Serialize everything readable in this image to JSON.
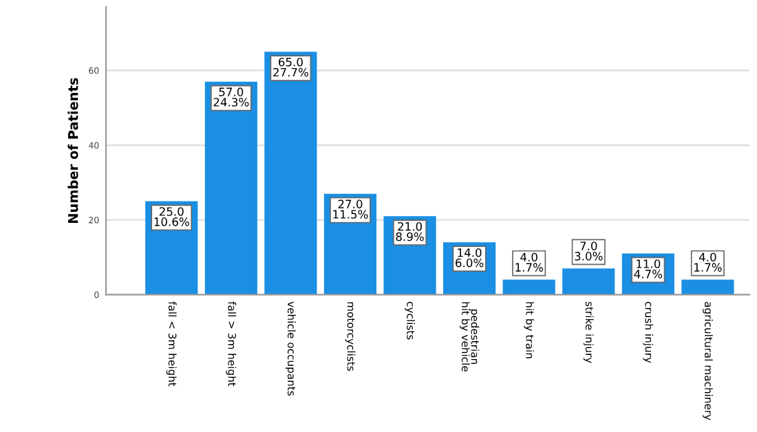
{
  "chart_data": {
    "type": "bar",
    "ylabel": "Number of Patients",
    "categories": [
      "fall < 3m height",
      "fall > 3m height",
      "vehicle occupants",
      "motorcyclists",
      "cyclists",
      "pedestrian\nhit by vehicle",
      "hit by train",
      "strike injury",
      "crush injury",
      "agricultural machinery"
    ],
    "values": [
      25.0,
      57.0,
      65.0,
      27.0,
      21.0,
      14.0,
      4.0,
      7.0,
      11.0,
      4.0
    ],
    "value_labels": [
      "25.0\n10.6%",
      "57.0\n24.3%",
      "65.0\n27.7%",
      "27.0\n11.5%",
      "21.0\n8.9%",
      "14.0\n6.0%",
      "4.0\n1.7%",
      "7.0\n3.0%",
      "11.0\n4.7%",
      "4.0\n1.7%"
    ],
    "color": "#1a8fe3",
    "ylim": [
      0,
      77
    ],
    "yticks": [
      0,
      20,
      40,
      60
    ],
    "grid": "y"
  }
}
